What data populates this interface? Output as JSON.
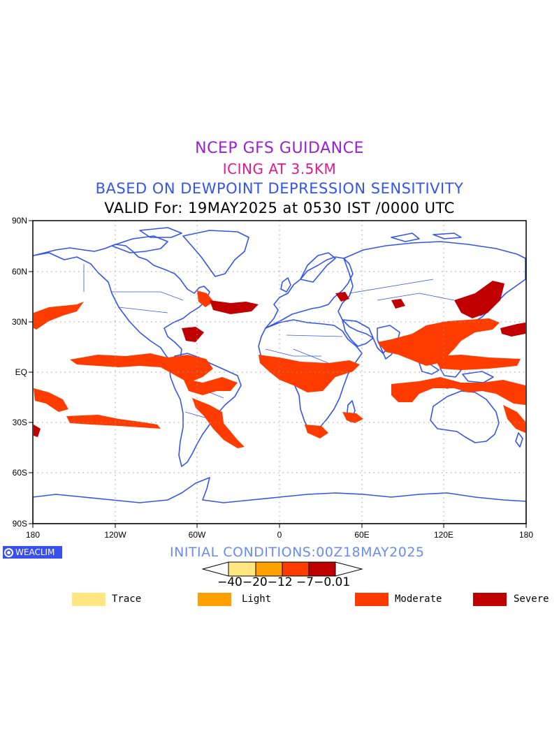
{
  "titles": {
    "line1": "NCEP GFS GUIDANCE",
    "line2": "ICING AT 3.5KM",
    "line3": "BASED ON DEWPOINT DEPRESSION SENSITIVITY",
    "line4": "VALID For: 19MAY2025 at 0530 IST /0000 UTC"
  },
  "colors": {
    "title1": "#9a1fd6",
    "title2": "#e0198f",
    "title3": "#3355ee",
    "coast": "#3355ee",
    "trace": "#ffe680",
    "light": "#ffa000",
    "moderate": "#ff3c00",
    "severe": "#c00000"
  },
  "map": {
    "lat_labels": [
      "90N",
      "60N",
      "30N",
      "EQ",
      "30S",
      "60S",
      "90S"
    ],
    "lon_labels": [
      "180",
      "120W",
      "60W",
      "0",
      "60E",
      "120E",
      "180"
    ]
  },
  "footer": {
    "logo_text": "WEACLIM",
    "initial_conditions": "INITIAL CONDITIONS:00Z18MAY2025"
  },
  "colorbar": {
    "labels": "−40−20−12 −7−0.01"
  },
  "legend": [
    {
      "label": "Trace",
      "color": "#ffe680"
    },
    {
      "label": "Light",
      "color": "#ffa000"
    },
    {
      "label": "Moderate",
      "color": "#ff3c00"
    },
    {
      "label": "Severe",
      "color": "#c00000"
    }
  ]
}
